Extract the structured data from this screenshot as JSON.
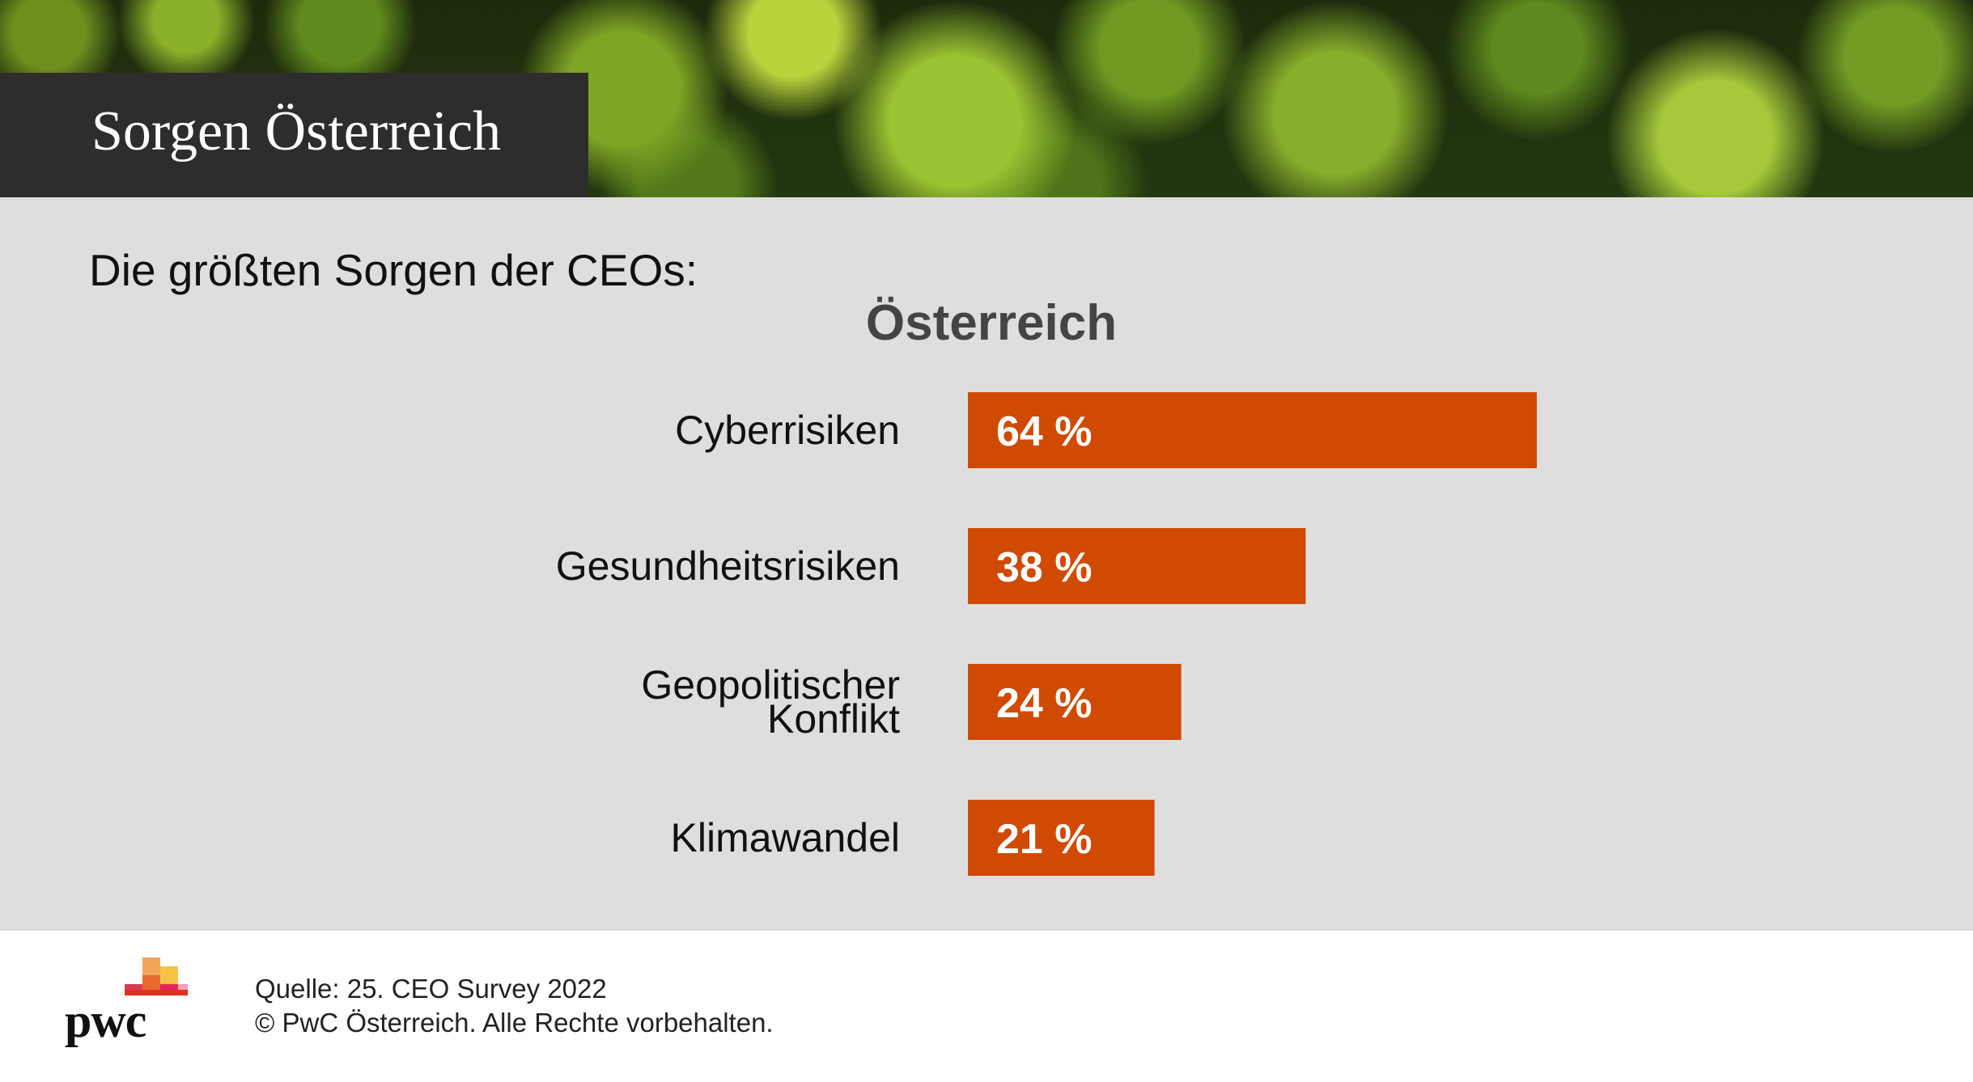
{
  "banner": {
    "title": "Sorgen Österreich"
  },
  "subtitle": "Die größten Sorgen der CEOs:",
  "chart_data": {
    "type": "bar",
    "orientation": "horizontal",
    "title": "Österreich",
    "categories": [
      [
        "Cyberrisiken"
      ],
      [
        "Gesundheitsrisiken"
      ],
      [
        "Geopolitischer",
        "Konflikt"
      ],
      [
        "Klimawandel"
      ]
    ],
    "values": [
      64,
      38,
      24,
      21
    ],
    "value_labels": [
      "64 %",
      "38 %",
      "24 %",
      "21 %"
    ],
    "unit": "%",
    "xlim": [
      0,
      100
    ],
    "grid": false,
    "legend": "none",
    "bar_color": "#d04a02",
    "label_color": "#ffffff"
  },
  "footer": {
    "logo_text": "pwc",
    "source_line": "Quelle: 25. CEO Survey 2022",
    "copyright_line": "© PwC Österreich. Alle Rechte vorbehalten."
  }
}
